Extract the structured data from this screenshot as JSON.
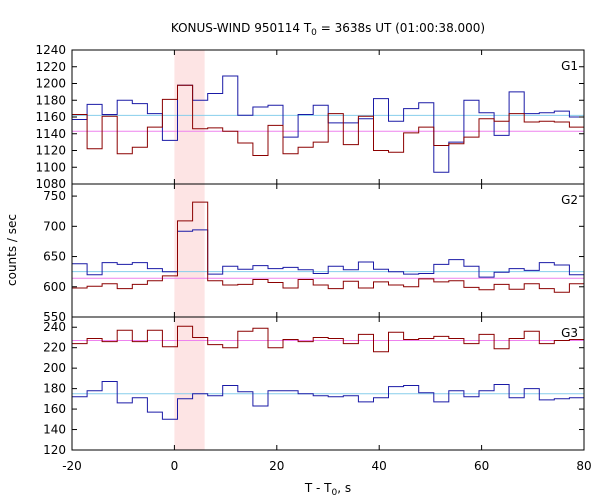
{
  "chart_data": {
    "type": "line",
    "title_prefix": "KONUS-WIND 950114 T",
    "title_sub": "0",
    "title_suffix": " = 3638s UT (01:00:38.000)",
    "xlabel_main": "T - T",
    "xlabel_sub": "0",
    "xlabel_suffix": ", s",
    "ylabel": "counts / sec",
    "xlim": [
      -20,
      80
    ],
    "x_ticks": [
      "-20",
      "0",
      "20",
      "40",
      "60",
      "80"
    ],
    "highlight_interval": [
      0,
      5.9
    ],
    "colors": {
      "red_series": "#8b0000",
      "blue_series": "#1a1aa6",
      "pink_fit": "#ee82ee",
      "cyan_fit": "#87ceeb",
      "highlight": "#fde4e4"
    },
    "bin_width": 2.944,
    "bin_start": -20,
    "panels": [
      {
        "label": "G1",
        "ylim": [
          1080,
          1240
        ],
        "y_ticks": [
          1080,
          1100,
          1120,
          1140,
          1160,
          1180,
          1200,
          1220,
          1240
        ],
        "red_values": [
          1163,
          1122,
          1161,
          1116,
          1124,
          1148,
          1181,
          1198,
          1146,
          1147,
          1143,
          1129,
          1114,
          1150,
          1116,
          1124,
          1130,
          1164,
          1127,
          1161,
          1120,
          1118,
          1141,
          1148,
          1126,
          1128,
          1136,
          1158,
          1155,
          1164,
          1154,
          1155,
          1154,
          1148
        ],
        "blue_values": [
          1157,
          1175,
          1163,
          1180,
          1176,
          1164,
          1132,
          1198,
          1180,
          1188,
          1209,
          1162,
          1172,
          1174,
          1136,
          1163,
          1174,
          1153,
          1153,
          1158,
          1182,
          1155,
          1170,
          1177,
          1094,
          1130,
          1180,
          1165,
          1138,
          1190,
          1164,
          1165,
          1167,
          1160
        ],
        "pink_fit": 1143,
        "cyan_fit": 1162
      },
      {
        "label": "G2",
        "ylim": [
          550,
          770
        ],
        "y_ticks": [
          550,
          600,
          650,
          700,
          750
        ],
        "red_values": [
          598,
          601,
          605,
          597,
          604,
          610,
          618,
          709,
          740,
          610,
          603,
          604,
          612,
          607,
          598,
          612,
          603,
          597,
          609,
          598,
          608,
          603,
          600,
          613,
          608,
          610,
          599,
          595,
          604,
          596,
          605,
          597,
          591,
          605,
          600
        ],
        "blue_values": [
          638,
          620,
          640,
          637,
          640,
          630,
          625,
          692,
          694,
          621,
          634,
          629,
          635,
          630,
          632,
          628,
          622,
          634,
          628,
          641,
          629,
          625,
          621,
          622,
          637,
          645,
          634,
          616,
          624,
          630,
          627,
          640,
          636,
          620,
          651
        ],
        "pink_fit": 614,
        "cyan_fit": 625
      },
      {
        "label": "G3",
        "ylim": [
          120,
          250
        ],
        "y_ticks": [
          120,
          140,
          160,
          180,
          200,
          220,
          240
        ],
        "red_values": [
          224,
          229,
          226,
          237,
          226,
          237,
          221,
          241,
          230,
          223,
          220,
          236,
          239,
          220,
          228,
          226,
          230,
          229,
          224,
          233,
          216,
          235,
          228,
          229,
          231,
          229,
          224,
          233,
          219,
          229,
          236,
          224,
          227,
          228
        ],
        "blue_values": [
          172,
          178,
          187,
          166,
          171,
          157,
          150,
          170,
          175,
          173,
          183,
          177,
          163,
          178,
          178,
          175,
          173,
          172,
          173,
          167,
          171,
          182,
          183,
          176,
          167,
          178,
          172,
          178,
          184,
          171,
          180,
          169,
          170,
          171
        ],
        "pink_fit": 227,
        "cyan_fit": 175
      }
    ]
  }
}
